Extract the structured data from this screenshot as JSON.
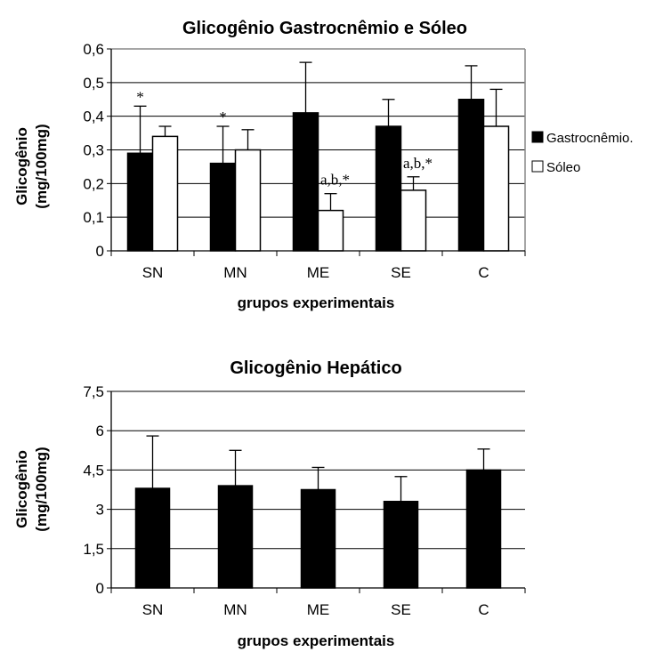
{
  "chart_data": [
    {
      "type": "bar",
      "title": "Glicogênio Gastrocnêmio e Sóleo",
      "xlabel": "grupos experimentais",
      "ylabel": [
        "Glicogênio",
        "(mg/100mg)"
      ],
      "categories": [
        "SN",
        "MN",
        "ME",
        "SE",
        "C"
      ],
      "ylim": [
        0,
        0.6
      ],
      "yticks": [
        "0",
        "0,1",
        "0,2",
        "0,3",
        "0,4",
        "0,5",
        "0,6"
      ],
      "grid": true,
      "legend": "right",
      "series": [
        {
          "name": "Gastrocnêmio.",
          "color": "#000000",
          "values": [
            0.29,
            0.26,
            0.41,
            0.37,
            0.45
          ],
          "error_upper": [
            0.43,
            0.37,
            0.56,
            0.45,
            0.55
          ]
        },
        {
          "name": "Sóleo",
          "color": "#ffffff",
          "values": [
            0.34,
            0.3,
            0.12,
            0.18,
            0.37
          ],
          "error_upper": [
            0.37,
            0.36,
            0.17,
            0.22,
            0.48
          ]
        }
      ],
      "annotations": [
        {
          "text": "*",
          "category": "SN",
          "series": 0
        },
        {
          "text": "*",
          "category": "MN",
          "series": 0
        },
        {
          "text": "a,b,*",
          "category": "ME",
          "series": 1
        },
        {
          "text": "a,b,*",
          "category": "SE",
          "series": 1
        }
      ]
    },
    {
      "type": "bar",
      "title": "Glicogênio Hepático",
      "xlabel": "grupos experimentais",
      "ylabel": [
        "Glicogênio",
        "(mg/100mg)"
      ],
      "categories": [
        "SN",
        "MN",
        "ME",
        "SE",
        "C"
      ],
      "ylim": [
        0,
        7.5
      ],
      "yticks": [
        "0",
        "1,5",
        "3",
        "4,5",
        "6",
        "7,5"
      ],
      "grid": true,
      "series": [
        {
          "color": "#000000",
          "values": [
            3.8,
            3.9,
            3.75,
            3.3,
            4.5
          ],
          "error_upper": [
            5.8,
            5.25,
            4.6,
            4.25,
            5.3
          ]
        }
      ]
    }
  ]
}
